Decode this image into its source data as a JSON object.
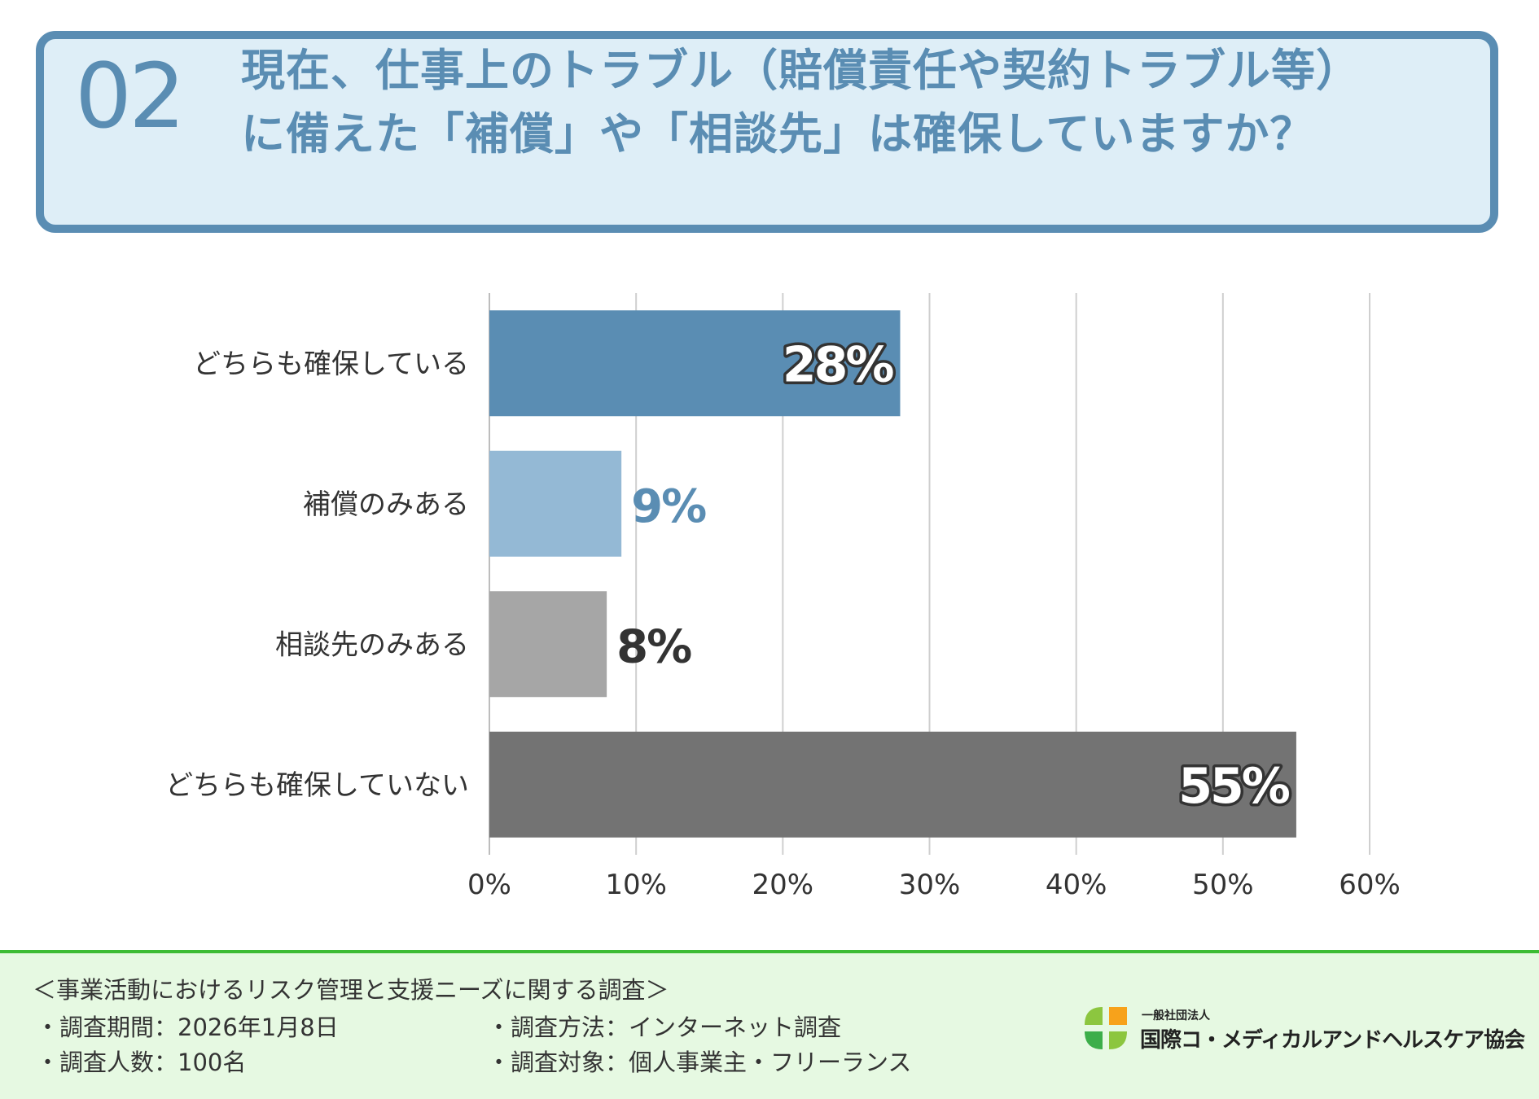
{
  "header": {
    "number": "02",
    "title_line1": "現在、仕事上のトラブル（賠償責任や契約トラブル等）",
    "title_line2": "に備えた「補償」や「相談先」は確保していますか？"
  },
  "colors": {
    "accent": "#5a8db3",
    "bar_both": "#5a8db3",
    "bar_compensation": "#94b9d5",
    "bar_consult": "#a6a6a6",
    "bar_neither": "#737373",
    "footer_bg": "#e6f9e2",
    "footer_line": "#3cbc34"
  },
  "chart_data": {
    "type": "bar",
    "orientation": "horizontal",
    "categories": [
      "どちらも確保している",
      "補償のみある",
      "相談先のみある",
      "どちらも確保していない"
    ],
    "values": [
      28,
      9,
      8,
      55
    ],
    "data_labels": [
      "28%",
      "9%",
      "8%",
      "55%"
    ],
    "xlim": [
      0,
      60
    ],
    "xticks": [
      0,
      10,
      20,
      30,
      40,
      50,
      60
    ],
    "xtick_labels": [
      "0%",
      "10%",
      "20%",
      "30%",
      "40%",
      "50%",
      "60%"
    ],
    "grid": true,
    "title": "",
    "xlabel": "",
    "ylabel": ""
  },
  "footer": {
    "survey_title": "＜事業活動におけるリスク管理と支援ニーズに関する調査＞",
    "period": "・調査期間：2026年1月8日",
    "count": "・調査人数：100名",
    "method": "・調査方法：インターネット調査",
    "target": "・調査対象：個人事業主・フリーランス",
    "org_type": "一般社団法人",
    "org_name": "国際コ・メディカルアンドヘルスケア協会"
  }
}
